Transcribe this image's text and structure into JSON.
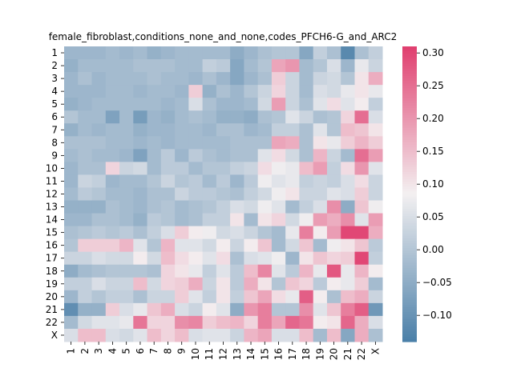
{
  "chart_data": {
    "type": "heatmap",
    "title": "female_fibroblast,conditions_none_and_none,codes_PFCH6-G_and_ARC2",
    "xlabel": "",
    "ylabel": "",
    "x_categories": [
      "1",
      "2",
      "3",
      "4",
      "5",
      "6",
      "7",
      "8",
      "9",
      "10",
      "11",
      "12",
      "13",
      "14",
      "15",
      "16",
      "17",
      "18",
      "19",
      "20",
      "21",
      "22",
      "X"
    ],
    "y_categories": [
      "1",
      "2",
      "3",
      "4",
      "5",
      "6",
      "7",
      "8",
      "9",
      "10",
      "11",
      "12",
      "13",
      "14",
      "15",
      "16",
      "17",
      "18",
      "19",
      "20",
      "21",
      "22",
      "X"
    ],
    "vmin": -0.14,
    "vmax": 0.31,
    "colorbar_ticks": [
      "−0.10",
      "−0.05",
      "0.00",
      "0.05",
      "0.10",
      "0.15",
      "0.20",
      "0.25",
      "0.30"
    ],
    "colorbar_tick_values": [
      -0.1,
      -0.05,
      0.0,
      0.05,
      0.1,
      0.15,
      0.2,
      0.25,
      0.3
    ],
    "colormap": {
      "low": "#4a7fa8",
      "mid": "#f3f0f1",
      "high": "#e03f6f"
    },
    "values": [
      [
        -0.03,
        -0.03,
        -0.03,
        -0.02,
        -0.03,
        -0.02,
        -0.04,
        -0.03,
        -0.02,
        -0.02,
        -0.02,
        -0.02,
        -0.05,
        -0.03,
        -0.01,
        0.0,
        0.0,
        -0.06,
        0.02,
        -0.01,
        -0.12,
        -0.01,
        0.02
      ],
      [
        -0.04,
        -0.02,
        -0.02,
        -0.02,
        -0.02,
        -0.01,
        -0.01,
        -0.01,
        -0.02,
        -0.02,
        0.02,
        0.01,
        -0.06,
        -0.02,
        0.0,
        0.18,
        0.2,
        -0.02,
        0.0,
        0.05,
        -0.03,
        0.07,
        0.03
      ],
      [
        -0.03,
        -0.01,
        -0.03,
        -0.02,
        -0.02,
        -0.02,
        -0.01,
        -0.02,
        -0.02,
        -0.03,
        -0.01,
        -0.03,
        -0.06,
        -0.03,
        -0.01,
        0.13,
        0.03,
        -0.02,
        0.03,
        0.04,
        0.0,
        0.1,
        0.17
      ],
      [
        -0.03,
        -0.03,
        -0.03,
        -0.02,
        -0.02,
        -0.03,
        -0.02,
        -0.02,
        -0.03,
        0.13,
        -0.04,
        -0.01,
        -0.03,
        0.0,
        0.03,
        0.12,
        0.03,
        -0.02,
        0.05,
        0.04,
        0.07,
        0.1,
        0.07
      ],
      [
        -0.04,
        -0.03,
        -0.02,
        -0.02,
        -0.02,
        -0.02,
        -0.02,
        -0.03,
        -0.02,
        0.05,
        -0.01,
        -0.03,
        -0.03,
        -0.02,
        0.04,
        0.19,
        0.03,
        -0.01,
        0.06,
        0.11,
        0.06,
        0.09,
        0.02
      ],
      [
        0.0,
        -0.02,
        -0.02,
        -0.07,
        -0.02,
        -0.08,
        -0.03,
        -0.04,
        -0.02,
        -0.01,
        -0.02,
        -0.04,
        -0.04,
        -0.05,
        -0.01,
        0.0,
        0.06,
        0.03,
        -0.01,
        0.0,
        0.12,
        0.25,
        0.05
      ],
      [
        -0.04,
        -0.02,
        -0.03,
        -0.02,
        -0.02,
        -0.04,
        -0.03,
        -0.03,
        -0.02,
        -0.02,
        -0.03,
        -0.01,
        -0.01,
        -0.03,
        -0.02,
        0.02,
        0.02,
        -0.01,
        0.06,
        0.0,
        0.15,
        0.14,
        0.1
      ],
      [
        -0.01,
        -0.01,
        -0.01,
        -0.02,
        -0.02,
        -0.03,
        -0.02,
        -0.03,
        -0.02,
        -0.02,
        -0.02,
        -0.02,
        -0.01,
        -0.01,
        -0.01,
        0.18,
        0.17,
        -0.01,
        0.1,
        0.07,
        0.13,
        0.16,
        0.13
      ],
      [
        -0.02,
        -0.01,
        -0.02,
        -0.02,
        -0.03,
        -0.07,
        -0.02,
        0.01,
        -0.03,
        0.01,
        -0.01,
        -0.02,
        -0.01,
        -0.01,
        0.06,
        0.11,
        0.04,
        -0.01,
        0.16,
        0.03,
        -0.02,
        0.25,
        0.19
      ],
      [
        -0.03,
        -0.01,
        -0.01,
        0.12,
        0.03,
        0.04,
        -0.02,
        0.01,
        0.01,
        -0.02,
        0.0,
        0.0,
        0.02,
        0.03,
        0.11,
        0.08,
        0.07,
        0.15,
        0.19,
        0.02,
        0.11,
        0.2,
        0.06
      ],
      [
        -0.03,
        0.03,
        0.02,
        -0.03,
        -0.02,
        -0.02,
        0.0,
        0.03,
        0.0,
        0.01,
        -0.02,
        0.01,
        -0.03,
        0.01,
        0.08,
        0.06,
        0.07,
        0.02,
        0.03,
        0.02,
        0.05,
        0.11,
        0.03
      ],
      [
        -0.02,
        0.01,
        0.0,
        -0.02,
        -0.02,
        -0.03,
        -0.01,
        -0.01,
        0.03,
        0.01,
        0.01,
        0.0,
        -0.01,
        0.02,
        0.04,
        0.08,
        0.1,
        0.03,
        0.03,
        0.06,
        0.05,
        0.13,
        0.03
      ],
      [
        -0.04,
        -0.04,
        -0.04,
        -0.01,
        -0.02,
        -0.03,
        -0.01,
        0.0,
        -0.02,
        -0.01,
        0.0,
        0.02,
        0.05,
        0.04,
        0.08,
        0.06,
        -0.02,
        0.02,
        0.05,
        0.21,
        -0.05,
        0.14,
        0.08
      ],
      [
        -0.03,
        -0.03,
        -0.01,
        -0.01,
        -0.02,
        -0.04,
        0.01,
        0.0,
        -0.02,
        -0.01,
        0.02,
        0.02,
        0.1,
        -0.02,
        0.1,
        0.12,
        0.04,
        0.08,
        0.19,
        0.17,
        0.21,
        0.06,
        0.19
      ],
      [
        -0.01,
        0.0,
        0.01,
        0.0,
        0.01,
        -0.01,
        0.02,
        0.05,
        0.13,
        0.09,
        0.08,
        0.04,
        0.05,
        0.03,
        0.0,
        -0.02,
        0.07,
        0.23,
        0.09,
        0.19,
        0.3,
        0.3,
        0.17
      ],
      [
        0.0,
        0.13,
        0.13,
        0.13,
        0.16,
        0.06,
        0.0,
        0.16,
        0.06,
        0.06,
        0.04,
        0.09,
        0.03,
        0.09,
        0.14,
        -0.02,
        0.04,
        0.14,
        -0.02,
        0.08,
        0.1,
        0.14,
        0.01
      ],
      [
        0.03,
        0.03,
        0.05,
        0.04,
        0.04,
        0.09,
        0.04,
        0.15,
        0.11,
        0.09,
        0.06,
        0.11,
        -0.01,
        0.05,
        0.06,
        0.08,
        -0.03,
        0.1,
        0.14,
        0.12,
        0.13,
        0.3,
        0.02
      ],
      [
        -0.05,
        -0.02,
        -0.01,
        0.0,
        0.0,
        0.0,
        -0.01,
        0.12,
        0.1,
        0.07,
        0.02,
        0.06,
        0.01,
        0.15,
        0.22,
        0.06,
        0.01,
        0.16,
        0.07,
        0.28,
        0.07,
        0.16,
        0.09
      ],
      [
        0.02,
        0.02,
        0.05,
        0.03,
        0.03,
        0.15,
        0.04,
        0.12,
        0.13,
        0.17,
        0.03,
        0.1,
        0.01,
        0.17,
        0.1,
        0.0,
        0.14,
        0.12,
        0.01,
        0.09,
        0.07,
        0.13,
        -0.02
      ],
      [
        -0.03,
        0.02,
        0.0,
        0.02,
        0.02,
        -0.01,
        0.03,
        0.03,
        0.13,
        0.06,
        0.02,
        0.1,
        0.02,
        0.14,
        0.18,
        0.11,
        0.07,
        0.27,
        0.09,
        -0.01,
        0.15,
        0.17,
        0.03
      ],
      [
        -0.11,
        -0.04,
        -0.04,
        0.13,
        0.05,
        0.07,
        0.14,
        0.17,
        0.05,
        0.03,
        0.09,
        0.06,
        -0.05,
        0.2,
        0.23,
        0.0,
        0.0,
        0.21,
        0.06,
        0.14,
        0.23,
        0.27,
        -0.09
      ],
      [
        -0.02,
        0.04,
        0.06,
        0.06,
        0.07,
        0.24,
        0.12,
        0.12,
        0.21,
        0.22,
        0.13,
        0.15,
        0.16,
        0.12,
        0.23,
        0.18,
        0.26,
        0.24,
        0.09,
        0.1,
        0.26,
        0.17,
        0.05
      ],
      [
        0.05,
        0.15,
        0.15,
        0.05,
        0.04,
        0.06,
        0.15,
        0.12,
        0.15,
        0.05,
        0.06,
        0.06,
        0.03,
        0.16,
        0.18,
        0.05,
        0.05,
        0.15,
        -0.02,
        0.15,
        -0.06,
        0.17,
        -0.01
      ]
    ]
  }
}
